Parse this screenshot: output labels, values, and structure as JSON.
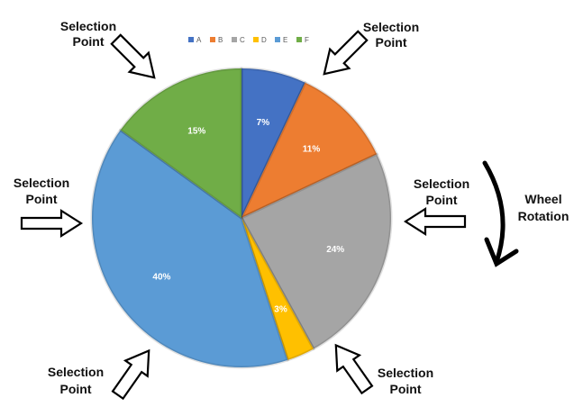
{
  "chart_data": {
    "type": "pie",
    "categories": [
      "A",
      "B",
      "C",
      "D",
      "E",
      "F"
    ],
    "values": [
      7,
      11,
      24,
      3,
      40,
      15
    ],
    "data_labels": [
      "7%",
      "11%",
      "24%",
      "3%",
      "40%",
      "15%"
    ],
    "colors": [
      "#4472C4",
      "#ED7D31",
      "#A5A5A5",
      "#FFC000",
      "#5B9BD5",
      "#70AD47"
    ],
    "legend_position": "top",
    "start_angle": "12 o'clock",
    "direction": "clockwise"
  },
  "selection_points": [
    {
      "line1": "Selection",
      "line2": "Point"
    },
    {
      "line1": "Selection",
      "line2": "Point"
    },
    {
      "line1": "Selection",
      "line2": "Point"
    },
    {
      "line1": "Selection",
      "line2": "Point"
    },
    {
      "line1": "Selection",
      "line2": "Point"
    },
    {
      "line1": "Selection",
      "line2": "Point"
    }
  ],
  "rotation": {
    "line1": "Wheel",
    "line2": "Rotation"
  },
  "icons": {
    "selection_arrow": "hollow-block-arrow-icon",
    "rotation_arrow": "curved-rotation-arrow-icon"
  }
}
